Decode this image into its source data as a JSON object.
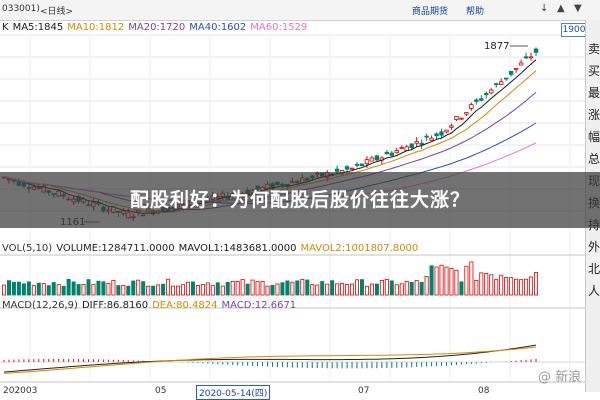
{
  "window": {
    "code": "033001)",
    "back_label": "<日线>",
    "menu_items": [
      "商品期货",
      "帮助"
    ],
    "window_controls": [
      "↓",
      "▲",
      "▼"
    ]
  },
  "price_box": "1900",
  "legends": {
    "ma": [
      {
        "label": "K",
        "color": "#222222"
      },
      {
        "label": "MA5:1845",
        "color": "#1a1a1a"
      },
      {
        "label": "MA10:1812",
        "color": "#d18a00"
      },
      {
        "label": "MA20:1720",
        "color": "#7c3ea4"
      },
      {
        "label": "MA40:1602",
        "color": "#2b4fb8"
      },
      {
        "label": "MA60:1529",
        "color": "#e276c9"
      }
    ],
    "vol": [
      {
        "label": "VOL(5,10)",
        "color": "#333333"
      },
      {
        "label": "VOLUME:1284711.0000",
        "color": "#222222"
      },
      {
        "label": "MAVOL1:1483681.0000",
        "color": "#1a1a1a"
      },
      {
        "label": "MAVOL2:1001807.8000",
        "color": "#d18a00"
      }
    ],
    "macd": [
      {
        "label": "MACD(12,26,9)",
        "color": "#333333"
      },
      {
        "label": "DIFF:86.8160",
        "color": "#222222"
      },
      {
        "label": "DEA:80.4824",
        "color": "#d18a00"
      },
      {
        "label": "MACD:12.6671",
        "color": "#7c3ea4"
      }
    ]
  },
  "annotations": {
    "high": "1877",
    "low": "1161"
  },
  "banner_text": "配股利好：为何配股后股价往往大涨？",
  "side_panel": [
    "卖",
    "买",
    "最",
    "涨",
    "幅",
    "总",
    "现",
    "换",
    "持",
    "外",
    "北",
    "人"
  ],
  "x_axis": {
    "labels": [
      "202003",
      "05",
      "07",
      "08"
    ],
    "highlighted_date": "2020-05-14(四)"
  },
  "watermark": "@ 新浪",
  "colors": {
    "up": "#e00000",
    "down": "#00826b",
    "grid": "#dfe6f3"
  },
  "chart_data": {
    "type": "candlestick",
    "x_period": [
      "2020-03",
      "2020-08"
    ],
    "price_range": [
      1120,
      1900
    ],
    "high": 1877,
    "low": 1161,
    "ma_last": {
      "MA5": 1845,
      "MA10": 1812,
      "MA20": 1720,
      "MA40": 1602,
      "MA60": 1529
    },
    "volume_last": 1284711,
    "mavol1": 1483681,
    "mavol2": 1001807.8,
    "diff": 86.816,
    "dea": 80.4824,
    "macd": 12.6671
  }
}
